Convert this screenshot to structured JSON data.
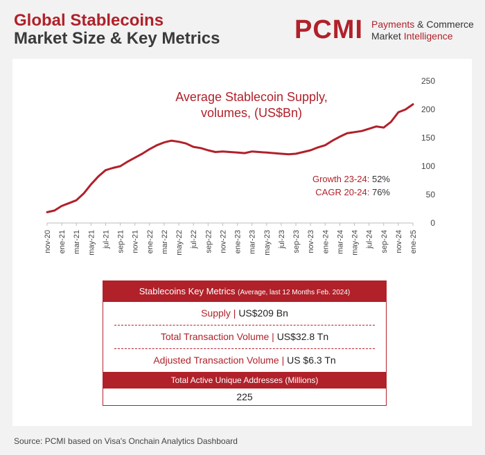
{
  "header": {
    "title_line1": "Global Stablecoins",
    "title_line2": "Market Size & Key Metrics"
  },
  "logo": {
    "mark": "PCMI",
    "line1_a": "Payments",
    "line1_b": " & Commerce",
    "line2_a": "Market ",
    "line2_b": "Intelligence"
  },
  "chart_data": {
    "type": "line",
    "title": "Average Stablecoin Supply, volumes, (US$Bn)",
    "title_line1": "Average Stablecoin Supply,",
    "title_line2": "volumes, (US$Bn)",
    "ylim": [
      0,
      250
    ],
    "yticks": [
      0,
      50,
      100,
      150,
      200,
      250
    ],
    "grid": false,
    "y_axis_side": "right",
    "xtick_labels": [
      "nov-20",
      "ene-21",
      "mar-21",
      "may-21",
      "jul-21",
      "sep-21",
      "nov-21",
      "ene-22",
      "mar-22",
      "may-22",
      "jul-22",
      "sep-22",
      "nov-22",
      "ene-23",
      "mar-23",
      "may-23",
      "jul-23",
      "sep-23",
      "nov-23",
      "ene-24",
      "mar-24",
      "may-24",
      "jul-24",
      "sep-24",
      "nov-24",
      "ene-25"
    ],
    "series": [
      {
        "color": "#b0212a",
        "values": [
          19,
          22,
          30,
          35,
          40,
          52,
          68,
          82,
          93,
          97,
          100,
          108,
          115,
          122,
          130,
          137,
          142,
          145,
          143,
          140,
          134,
          132,
          128,
          125,
          126,
          125,
          124,
          123,
          126,
          125,
          124,
          123,
          122,
          121,
          122,
          125,
          128,
          133,
          137,
          145,
          152,
          158,
          160,
          162,
          166,
          170,
          168,
          178,
          195,
          200,
          209
        ]
      }
    ],
    "annotations": [
      {
        "label": "Growth 23-24:",
        "value": "52%"
      },
      {
        "label": "CAGR 20-24:",
        "value": "76%"
      }
    ]
  },
  "metrics": {
    "header": "Stablecoins Key Metrics",
    "header_note": "(Average, last 12 Months Feb. 2024)",
    "rows": [
      {
        "label": "Supply |",
        "value": "US$209 Bn"
      },
      {
        "label": "Total Transaction Volume |",
        "value": "US$32.8 Tn"
      },
      {
        "label": "Adjusted Transaction Volume |",
        "value": "US $6.3 Tn"
      }
    ],
    "addresses_header": "Total Active Unique Addresses (Millions)",
    "addresses_value": "225"
  },
  "source": "Source: PCMI based on Visa's Onchain Analytics Dashboard"
}
